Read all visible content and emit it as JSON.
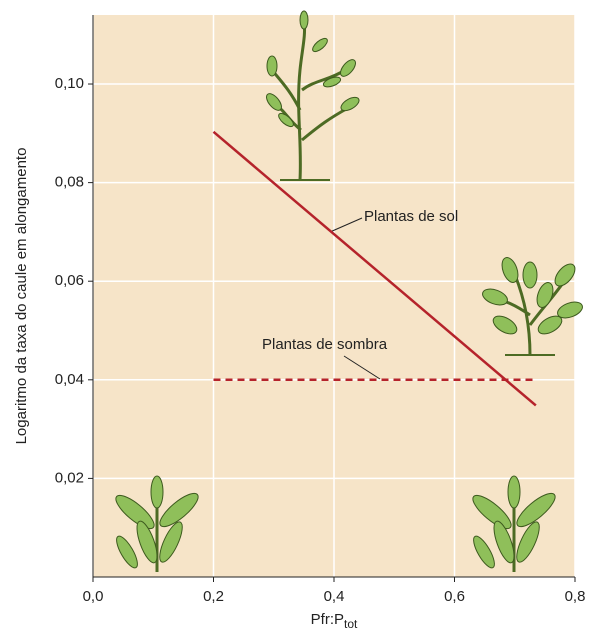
{
  "chart_data": {
    "type": "line",
    "y_label": "Logaritmo da taxa do caule em alongamento",
    "x_label": [
      "Pfr:P",
      "tot"
    ],
    "xlim": [
      0,
      0.8
    ],
    "ylim": [
      0,
      0.114
    ],
    "xticks": [
      {
        "value": 0,
        "label": "0,0"
      },
      {
        "value": 0.2,
        "label": "0,2"
      },
      {
        "value": 0.4,
        "label": "0,4"
      },
      {
        "value": 0.6,
        "label": "0,6"
      },
      {
        "value": 0.8,
        "label": "0,8"
      }
    ],
    "yticks": [
      {
        "value": 0.02,
        "label": "0,02"
      },
      {
        "value": 0.04,
        "label": "0,04"
      },
      {
        "value": 0.06,
        "label": "0,06"
      },
      {
        "value": 0.08,
        "label": "0,08"
      },
      {
        "value": 0.1,
        "label": "0,10"
      }
    ],
    "grid": true,
    "series": [
      {
        "name": "Plantas de sol",
        "color": "#b5232b",
        "dash": false,
        "x": [
          0.2,
          0.735
        ],
        "values": [
          0.0903,
          0.0348
        ]
      },
      {
        "name": "Plantas de sombra",
        "color": "#b5232b",
        "dash": true,
        "x": [
          0.2,
          0.735
        ],
        "values": [
          0.04,
          0.04
        ]
      }
    ]
  }
}
